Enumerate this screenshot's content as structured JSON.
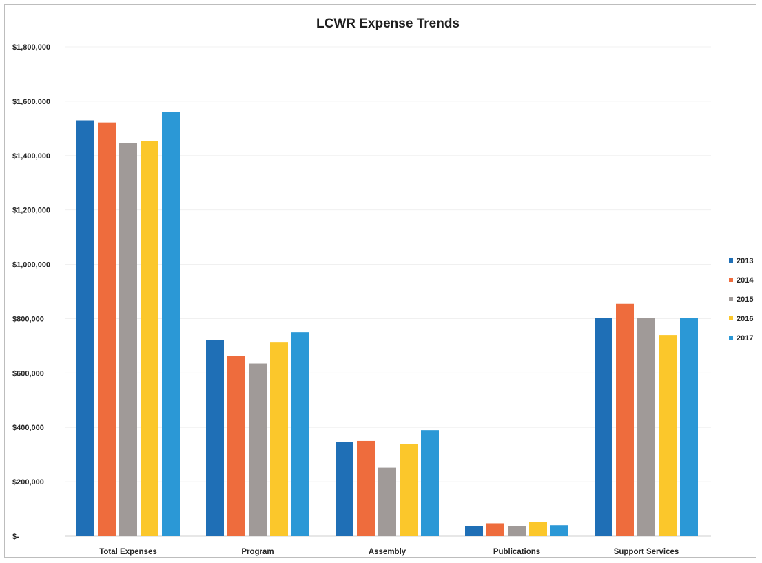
{
  "chart_data": {
    "type": "bar",
    "title": "LCWR Expense Trends",
    "xlabel": "",
    "ylabel": "",
    "categories": [
      "Total Expenses",
      "Program",
      "Assembly",
      "Publications",
      "Support Services"
    ],
    "series": [
      {
        "name": "2013",
        "color": "#1f6fb6",
        "values": [
          1530000,
          722000,
          347000,
          36000,
          802000
        ]
      },
      {
        "name": "2014",
        "color": "#ee6c3d",
        "values": [
          1522000,
          662000,
          350000,
          47000,
          855000
        ]
      },
      {
        "name": "2015",
        "color": "#a09a98",
        "values": [
          1446000,
          635000,
          252000,
          38000,
          802000
        ]
      },
      {
        "name": "2016",
        "color": "#fbc72b",
        "values": [
          1455000,
          712000,
          338000,
          52000,
          740000
        ]
      },
      {
        "name": "2017",
        "color": "#2b98d6",
        "values": [
          1560000,
          750000,
          390000,
          40000,
          802000
        ]
      }
    ],
    "ylim": [
      0,
      1800000
    ],
    "yticks": [
      0,
      200000,
      400000,
      600000,
      800000,
      1000000,
      1200000,
      1400000,
      1600000,
      1800000
    ],
    "ytick_labels": [
      "$-",
      "$200,000",
      "$400,000",
      "$600,000",
      "$800,000",
      "$1,000,000",
      "$1,200,000",
      "$1,400,000",
      "$1,600,000",
      "$1,800,000"
    ],
    "grid": true,
    "legend_position": "right"
  }
}
